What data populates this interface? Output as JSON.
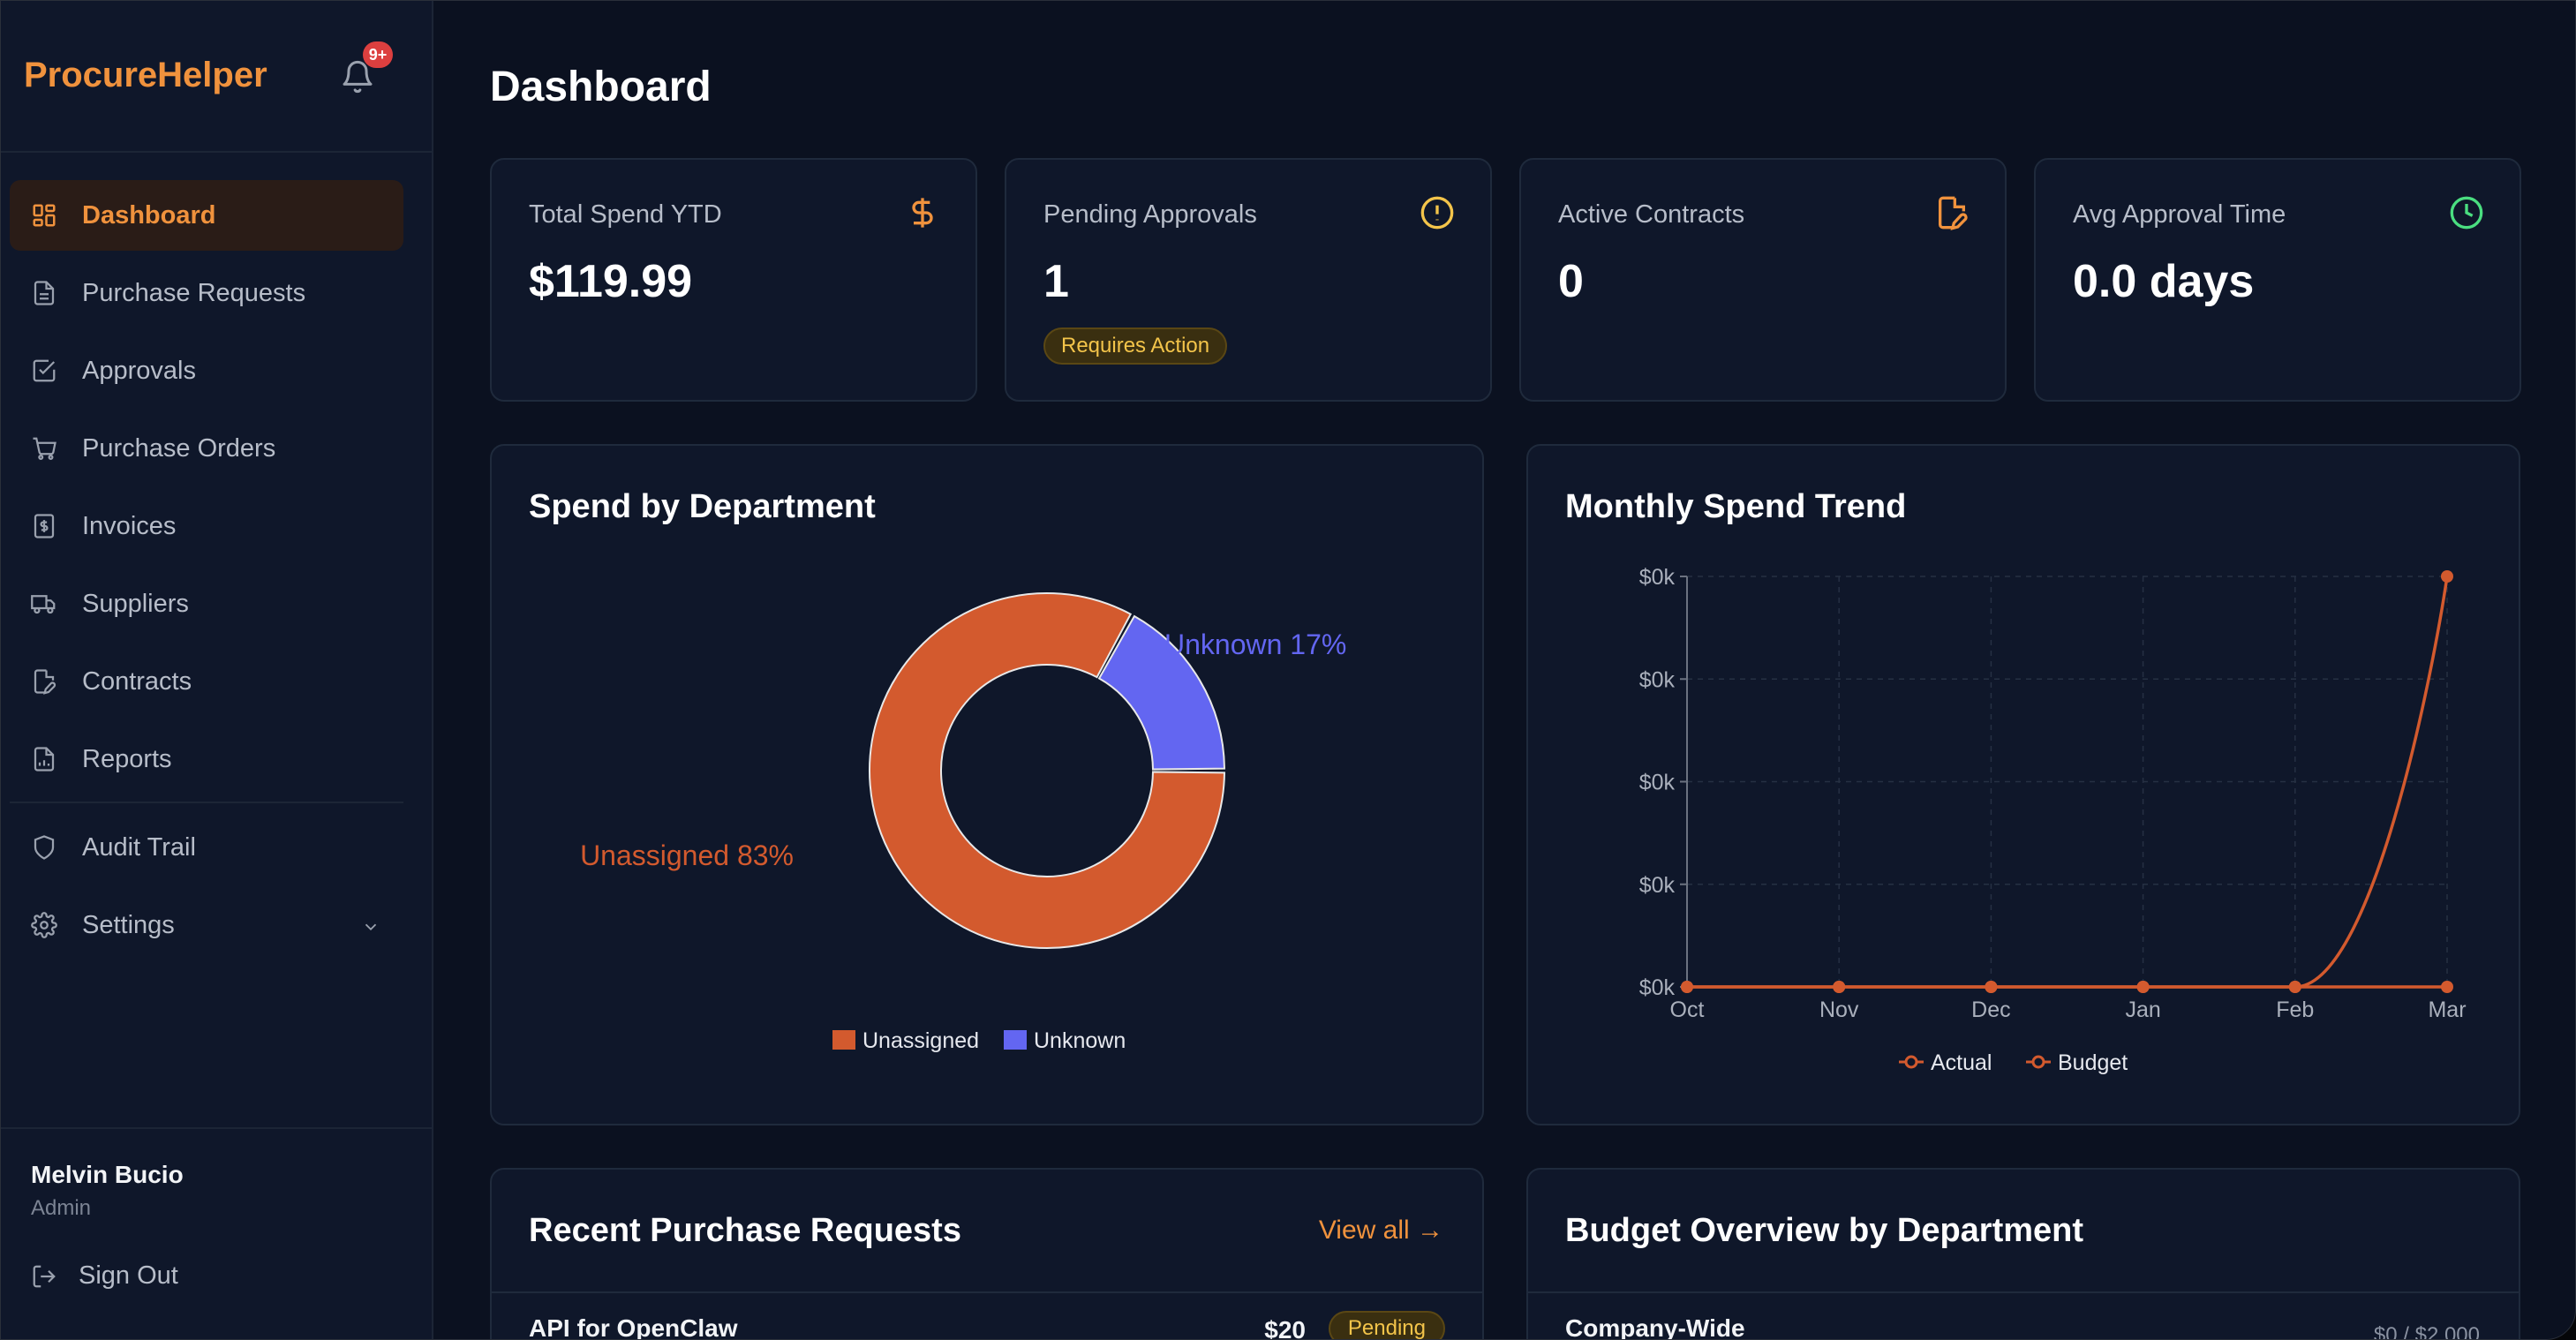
{
  "app": {
    "brand": "ProcureHelper",
    "notification_badge": "9+",
    "accent": "#f0923d"
  },
  "sidebar": {
    "items": [
      {
        "label": "Dashboard",
        "icon": "dashboard-grid-icon",
        "active": true
      },
      {
        "label": "Purchase Requests",
        "icon": "document-icon"
      },
      {
        "label": "Approvals",
        "icon": "checkbox-icon"
      },
      {
        "label": "Purchase Orders",
        "icon": "cart-icon"
      },
      {
        "label": "Invoices",
        "icon": "invoice-dollar-icon"
      },
      {
        "label": "Suppliers",
        "icon": "truck-icon"
      },
      {
        "label": "Contracts",
        "icon": "contract-edit-icon"
      },
      {
        "label": "Reports",
        "icon": "report-icon"
      }
    ],
    "secondary": [
      {
        "label": "Audit Trail",
        "icon": "shield-icon"
      },
      {
        "label": "Settings",
        "icon": "gear-icon"
      }
    ],
    "user": {
      "name": "Melvin Bucio",
      "role": "Admin"
    },
    "sign_out": "Sign Out"
  },
  "page": {
    "title": "Dashboard"
  },
  "stats": [
    {
      "label": "Total Spend YTD",
      "value": "$119.99",
      "icon": "dollar-icon",
      "color": "#f0923d"
    },
    {
      "label": "Pending Approvals",
      "value": "1",
      "icon": "alert-circle-icon",
      "color": "#f3c44a",
      "pill": "Requires Action"
    },
    {
      "label": "Active Contracts",
      "value": "0",
      "icon": "contract-edit-icon",
      "color": "#f0923d"
    },
    {
      "label": "Avg Approval Time",
      "value": "0.0 days",
      "icon": "clock-icon",
      "color": "#4ade80"
    }
  ],
  "panels": {
    "spend_by_department": {
      "title": "Spend by Department"
    },
    "monthly_trend": {
      "title": "Monthly Spend Trend"
    },
    "recent_requests": {
      "title": "Recent Purchase Requests",
      "view_all": "View all",
      "rows": [
        {
          "label": "API for OpenClaw",
          "amount": "$20",
          "status": "Pending"
        }
      ]
    },
    "budget_overview": {
      "title": "Budget Overview by Department",
      "rows": [
        {
          "label": "Company-Wide",
          "value": "$0 / $2,000"
        }
      ]
    }
  },
  "chart_data": [
    {
      "type": "pie",
      "title": "Spend by Department",
      "categories": [
        "Unassigned",
        "Unknown"
      ],
      "values": [
        83,
        17
      ],
      "slice_labels": [
        "Unassigned 83%",
        "Unknown 17%"
      ],
      "colors": [
        "#d35a2e",
        "#6366f1"
      ],
      "legend": "bottom"
    },
    {
      "type": "line",
      "title": "Monthly Spend Trend",
      "categories": [
        "Oct",
        "Nov",
        "Dec",
        "Jan",
        "Feb",
        "Mar"
      ],
      "series": [
        {
          "name": "Actual",
          "values": [
            0,
            0,
            0,
            0,
            0,
            120
          ],
          "color": "#d35a2e"
        },
        {
          "name": "Budget",
          "values": [
            0,
            0,
            0,
            0,
            0,
            0
          ],
          "color": "#d35a2e"
        }
      ],
      "ytick_labels": [
        "$0k",
        "$0k",
        "$0k",
        "$0k",
        "$0k"
      ],
      "ylim": [
        0,
        120
      ],
      "grid": true,
      "legend": "bottom"
    }
  ]
}
